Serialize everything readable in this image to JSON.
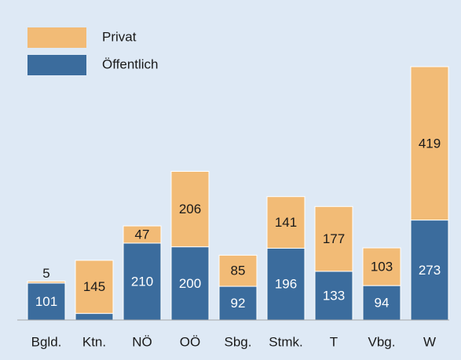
{
  "chart_data": {
    "type": "stacked-bar",
    "categories": [
      "Bgld.",
      "Ktn.",
      "NÖ",
      "OÖ",
      "Sbg.",
      "Stmk.",
      "T",
      "Vbg.",
      "W"
    ],
    "series": [
      {
        "name": "Öffentlich",
        "color": "#3b6c9d",
        "values": [
          101,
          18,
          210,
          200,
          92,
          196,
          133,
          94,
          273
        ],
        "value_labels": [
          "101",
          null,
          "210",
          "200",
          "92",
          "196",
          "133",
          "94",
          "273"
        ]
      },
      {
        "name": "Privat",
        "color": "#f2bb76",
        "values": [
          5,
          145,
          47,
          206,
          85,
          141,
          177,
          103,
          419
        ],
        "value_labels": [
          "5",
          "145",
          "47",
          "206",
          "85",
          "141",
          "177",
          "103",
          "419"
        ]
      }
    ],
    "legend": "top-left"
  }
}
